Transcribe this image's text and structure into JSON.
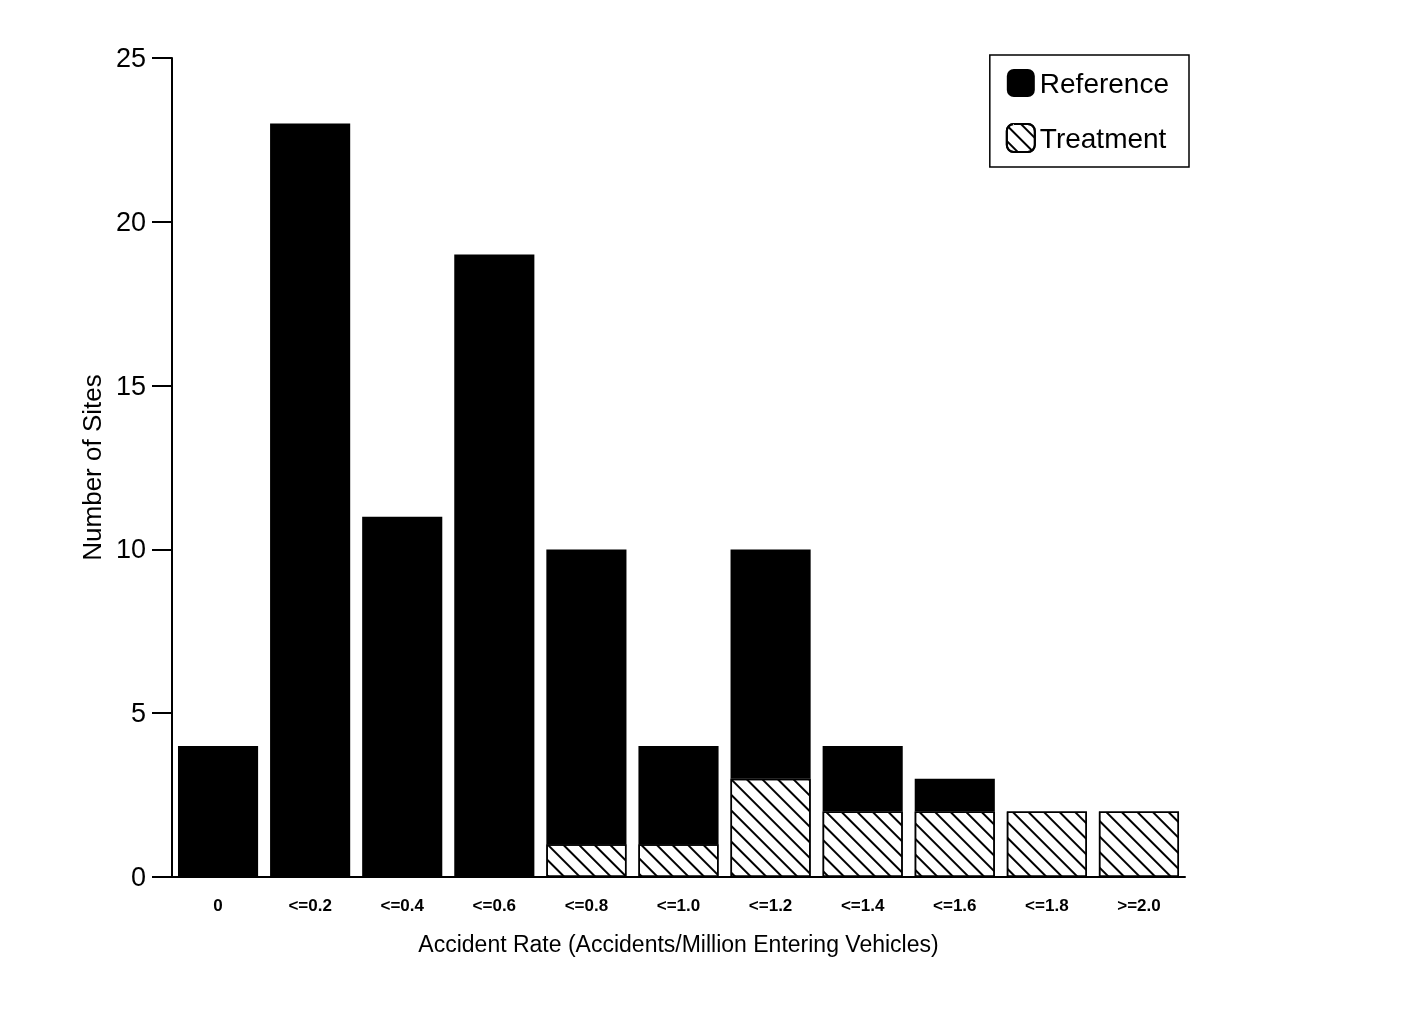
{
  "chart_data": {
    "type": "bar",
    "stacked": true,
    "xlabel": "Accident Rate (Accidents/Million Entering Vehicles)",
    "ylabel": "Number of Sites",
    "categories": [
      "0",
      "<=0.2",
      "<=0.4",
      "<=0.6",
      "<=0.8",
      "<=1.0",
      "<=1.2",
      "<=1.4",
      "<=1.6",
      "<=1.8",
      ">=2.0"
    ],
    "series": [
      {
        "name": "Treatment",
        "color": "#ffffff",
        "values": [
          0,
          0,
          0,
          0,
          1,
          1,
          3,
          2,
          2,
          2,
          2
        ]
      },
      {
        "name": "Reference",
        "color": "#000000",
        "values": [
          4,
          23,
          11,
          19,
          9,
          3,
          7,
          2,
          1,
          0,
          0
        ]
      }
    ],
    "ylim": [
      0,
      25
    ],
    "yticks": [
      0,
      5,
      10,
      15,
      20,
      25
    ],
    "grid": false,
    "legend": "top right"
  }
}
